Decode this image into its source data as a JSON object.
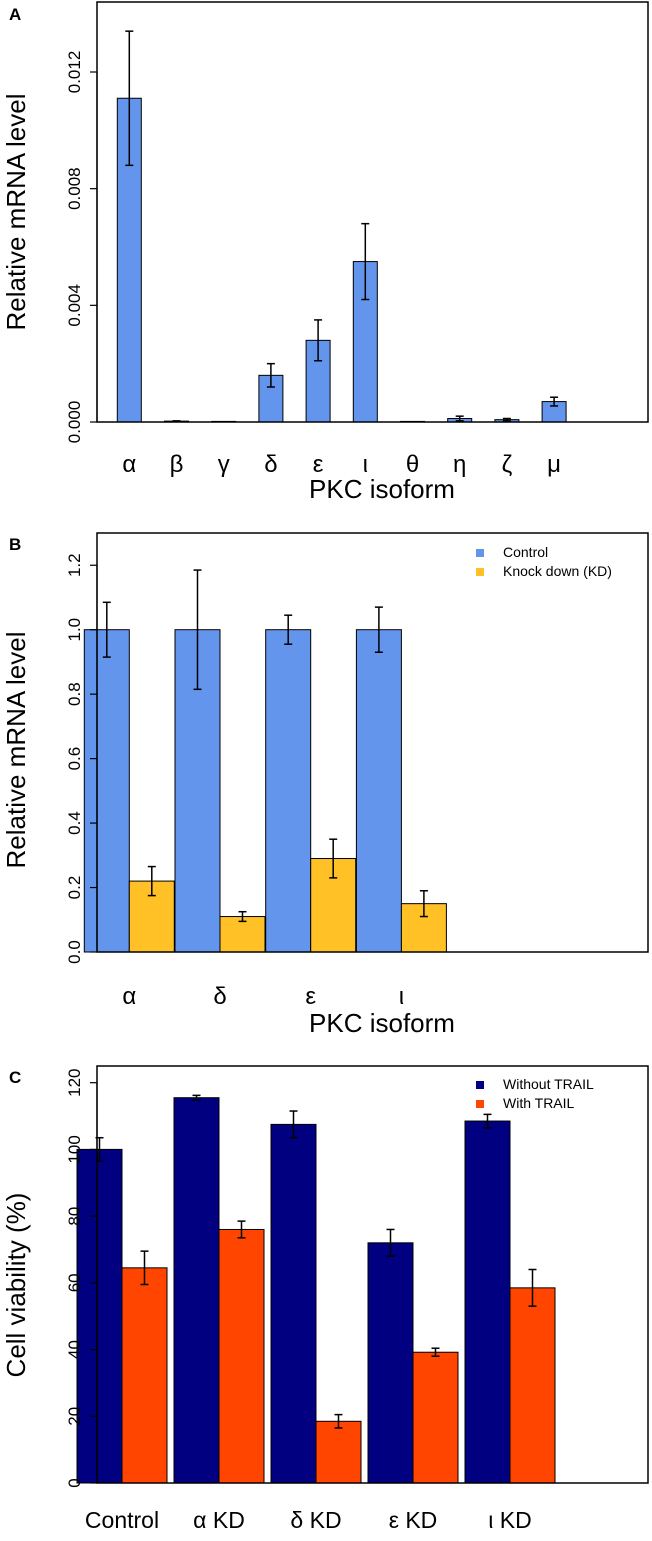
{
  "chart_data": [
    {
      "panel": "A",
      "type": "bar",
      "xlabel": "PKC isoform",
      "ylabel": "Relative mRNA level",
      "ylim": [
        0,
        0.0144
      ],
      "yticks": [
        "0.000",
        "0.004",
        "0.008",
        "0.012"
      ],
      "ytick_values": [
        0,
        0.004,
        0.008,
        0.012
      ],
      "categories": [
        "α",
        "β",
        "γ",
        "δ",
        "ε",
        "ι",
        "θ",
        "η",
        "ζ",
        "μ"
      ],
      "series": [
        {
          "name": "",
          "color": "#6495ed",
          "values": [
            0.0111,
            3e-05,
            1e-05,
            0.0016,
            0.0028,
            0.0055,
            1e-05,
            0.00012,
            8e-05,
            0.0007
          ],
          "errors": [
            0.0023,
            1e-05,
            0.0,
            0.0004,
            0.0007,
            0.0013,
            0.0,
            8e-05,
            4e-05,
            0.00015
          ]
        }
      ],
      "legend": "none"
    },
    {
      "panel": "B",
      "type": "bar",
      "xlabel": "PKC isoform",
      "ylabel": "Relative mRNA level",
      "ylim": [
        0,
        1.3
      ],
      "yticks": [
        "0.0",
        "0.2",
        "0.4",
        "0.6",
        "0.8",
        "1.0",
        "1.2"
      ],
      "ytick_values": [
        0,
        0.2,
        0.4,
        0.6,
        0.8,
        1.0,
        1.2
      ],
      "categories": [
        "α",
        "δ",
        "ε",
        "ι"
      ],
      "series": [
        {
          "name": "Control",
          "color": "#6495ed",
          "values": [
            1.0,
            1.0,
            1.0,
            1.0
          ],
          "errors": [
            0.085,
            0.185,
            0.045,
            0.07
          ]
        },
        {
          "name": "Knock down (KD)",
          "color": "#ffc125",
          "values": [
            0.22,
            0.11,
            0.29,
            0.15
          ],
          "errors": [
            0.045,
            0.015,
            0.06,
            0.04
          ]
        }
      ],
      "legend": "top-right"
    },
    {
      "panel": "C",
      "type": "bar",
      "xlabel": "",
      "ylabel": "Cell viability (%)",
      "ylim": [
        0,
        125
      ],
      "yticks": [
        "0",
        "20",
        "40",
        "60",
        "80",
        "100",
        "120"
      ],
      "ytick_values": [
        0,
        20,
        40,
        60,
        80,
        100,
        120
      ],
      "categories": [
        "Control",
        "α KD",
        "δ KD",
        "ε KD",
        "ι KD"
      ],
      "series": [
        {
          "name": "Without TRAIL",
          "color": "#000080",
          "values": [
            100,
            115.5,
            107.5,
            72,
            108.5
          ],
          "errors": [
            3.5,
            0.7,
            4,
            4,
            2
          ]
        },
        {
          "name": "With TRAIL",
          "color": "#ff4500",
          "values": [
            64.5,
            76,
            18.5,
            39.2,
            58.5
          ],
          "errors": [
            5,
            2.5,
            2,
            1.2,
            5.5
          ]
        }
      ],
      "legend": "top-right"
    }
  ]
}
